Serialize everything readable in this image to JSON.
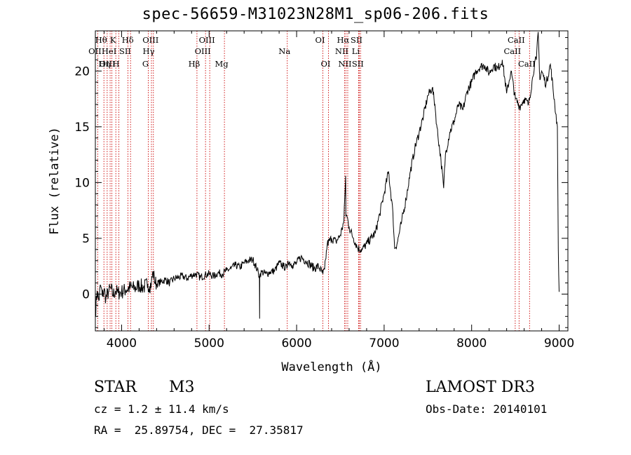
{
  "header": {
    "title": "spec-56659-M31023N28M1_sp06-206.fits"
  },
  "info": {
    "object_class": "STAR",
    "subclass": "M3",
    "survey": "LAMOST DR3",
    "velocity": "cz = 1.2 ± 11.4 km/s",
    "obs_date": "Obs-Date: 20140101",
    "coords": "RA =  25.89754, DEC =  27.35817"
  },
  "chart_data": {
    "type": "line",
    "title": "spec-56659-M31023N28M1_sp06-206.fits",
    "xlabel": "Wavelength (Å)",
    "ylabel": "Flux (relative)",
    "xlim": [
      3700,
      9100
    ],
    "ylim": [
      -3.3,
      23.6
    ],
    "xticks": [
      4000,
      5000,
      6000,
      7000,
      8000,
      9000
    ],
    "yticks": [
      0,
      5,
      10,
      15,
      20
    ],
    "line_color": "#000000",
    "marker_color": "#cc0000",
    "spectrum": {
      "x": [
        3700,
        3720,
        3740,
        3760,
        3780,
        3800,
        3820,
        3850,
        3880,
        3900,
        3930,
        3960,
        4000,
        4050,
        4100,
        4150,
        4200,
        4250,
        4300,
        4320,
        4340,
        4360,
        4380,
        4400,
        4450,
        4500,
        4550,
        4600,
        4650,
        4700,
        4750,
        4800,
        4850,
        4900,
        4950,
        5000,
        5050,
        5100,
        5150,
        5200,
        5250,
        5300,
        5350,
        5400,
        5450,
        5500,
        5550,
        5575,
        5577,
        5579,
        5600,
        5650,
        5700,
        5750,
        5800,
        5850,
        5890,
        5900,
        5950,
        6000,
        6050,
        6100,
        6150,
        6200,
        6250,
        6300,
        6320,
        6350,
        6400,
        6450,
        6500,
        6540,
        6560,
        6563,
        6575,
        6600,
        6650,
        6700,
        6750,
        6800,
        6850,
        6900,
        6950,
        7000,
        7050,
        7100,
        7120,
        7150,
        7200,
        7250,
        7300,
        7350,
        7400,
        7450,
        7500,
        7550,
        7580,
        7600,
        7650,
        7680,
        7700,
        7750,
        7800,
        7850,
        7900,
        7950,
        8000,
        8050,
        8100,
        8150,
        8200,
        8250,
        8300,
        8350,
        8400,
        8450,
        8500,
        8550,
        8600,
        8650,
        8700,
        8720,
        8740,
        8760,
        8780,
        8800,
        8850,
        8900,
        8950,
        8980,
        8990,
        9000
      ],
      "y": [
        -1.8,
        0.3,
        -0.6,
        0.8,
        -0.2,
        0.4,
        -0.4,
        0.2,
        0.5,
        -0.1,
        0.3,
        0.1,
        0.2,
        0.4,
        0.6,
        0.5,
        0.8,
        0.6,
        0.9,
        0.7,
        1.0,
        2.0,
        1.1,
        0.9,
        1.1,
        1.3,
        1.0,
        1.4,
        1.5,
        1.6,
        1.4,
        1.7,
        1.8,
        1.5,
        1.7,
        1.8,
        1.6,
        1.9,
        1.8,
        2.1,
        2.3,
        2.6,
        2.4,
        2.8,
        3.0,
        3.1,
        2.2,
        1.6,
        -2.2,
        1.7,
        2.0,
        1.8,
        2.0,
        2.1,
        2.8,
        2.5,
        2.3,
        3.0,
        2.6,
        2.8,
        3.3,
        3.0,
        2.7,
        2.3,
        2.5,
        1.8,
        2.2,
        4.5,
        5.0,
        4.7,
        5.3,
        6.5,
        10.6,
        7.0,
        7.0,
        6.0,
        5.0,
        4.1,
        4.0,
        4.5,
        5.0,
        5.5,
        7.2,
        9.0,
        11.0,
        7.3,
        4.1,
        4.6,
        6.5,
        8.5,
        11.0,
        13.0,
        14.5,
        16.0,
        17.8,
        18.5,
        17.0,
        15.2,
        12.0,
        9.5,
        12.5,
        14.5,
        15.5,
        17.0,
        16.5,
        18.2,
        19.0,
        20.0,
        20.4,
        20.5,
        19.8,
        20.5,
        20.2,
        21.0,
        18.0,
        20.0,
        17.5,
        16.8,
        17.5,
        17.0,
        19.5,
        20.8,
        21.0,
        23.5,
        19.2,
        20.0,
        18.8,
        20.6,
        17.0,
        15.0,
        4.0,
        0.2
      ]
    },
    "lines": [
      {
        "label": "Hθ",
        "x": 3798,
        "row": 0,
        "pos": 0
      },
      {
        "label": "OII",
        "x": 3727,
        "row": 1,
        "pos": 1
      },
      {
        "label": "OIII",
        "x": 3869,
        "row": 2,
        "pos": 2
      },
      {
        "label": "K",
        "x": 3934,
        "row": 0,
        "pos": 3
      },
      {
        "label": "HeI",
        "x": 3889,
        "row": 1,
        "pos": 4
      },
      {
        "label": "Hη",
        "x": 3835,
        "row": 2,
        "pos": 5
      },
      {
        "label": "Hδ",
        "x": 4102,
        "row": 0,
        "pos": 6
      },
      {
        "label": "SII",
        "x": 4072,
        "row": 1,
        "pos": 7
      },
      {
        "label": "H",
        "x": 3969,
        "row": 2,
        "pos": 8
      },
      {
        "label": "OIII",
        "x": 4363,
        "row": 0,
        "pos": 9
      },
      {
        "label": "Hγ",
        "x": 4341,
        "row": 1,
        "pos": 10
      },
      {
        "label": "G",
        "x": 4305,
        "row": 2,
        "pos": 11
      },
      {
        "label": "OIII",
        "x": 5007,
        "row": 0,
        "pos": 12
      },
      {
        "label": "OIII",
        "x": 4959,
        "row": 1,
        "pos": 13
      },
      {
        "label": "Hβ",
        "x": 4861,
        "row": 2,
        "pos": 14
      },
      {
        "label": "Mg",
        "x": 5175,
        "row": 2,
        "pos": 15
      },
      {
        "label": "Na",
        "x": 5893,
        "row": 1,
        "pos": 16
      },
      {
        "label": "OI",
        "x": 6300,
        "row": 0,
        "pos": 17
      },
      {
        "label": "OI",
        "x": 6364,
        "row": 2,
        "pos": 18
      },
      {
        "label": "Hα",
        "x": 6563,
        "row": 0,
        "pos": 19
      },
      {
        "label": "SII",
        "x": 6716,
        "row": 0,
        "pos": 20
      },
      {
        "label": "NII",
        "x": 6548,
        "row": 1,
        "pos": 21
      },
      {
        "label": "Li",
        "x": 6708,
        "row": 1,
        "pos": 22
      },
      {
        "label": "NII",
        "x": 6584,
        "row": 2,
        "pos": 23
      },
      {
        "label": "SII",
        "x": 6731,
        "row": 2,
        "pos": 24
      },
      {
        "label": "CaII",
        "x": 8542,
        "row": 0,
        "pos": 25
      },
      {
        "label": "CaII",
        "x": 8498,
        "row": 1,
        "pos": 26
      },
      {
        "label": "CaII",
        "x": 8662,
        "row": 2,
        "pos": 27
      }
    ]
  }
}
